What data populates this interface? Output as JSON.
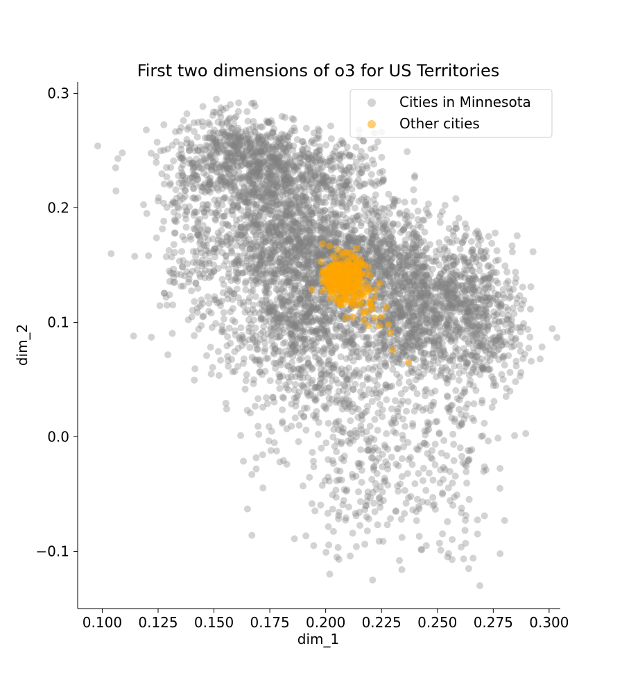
{
  "chart_data": {
    "type": "scatter",
    "title": "First two dimensions of o3 for US Territories",
    "xlabel": "dim_1",
    "ylabel": "dim_2",
    "xlim": [
      0.089,
      0.305
    ],
    "ylim": [
      -0.15,
      0.31
    ],
    "xticks": [
      0.1,
      0.125,
      0.15,
      0.175,
      0.2,
      0.225,
      0.25,
      0.275,
      0.3
    ],
    "xtick_labels": [
      "0.100",
      "0.125",
      "0.150",
      "0.175",
      "0.200",
      "0.225",
      "0.250",
      "0.275",
      "0.300"
    ],
    "yticks": [
      -0.1,
      0.0,
      0.1,
      0.2,
      0.3
    ],
    "ytick_labels": [
      "−0.1",
      "0.0",
      "0.1",
      "0.2",
      "0.3"
    ],
    "grid": false,
    "legend_position": "top-right",
    "series": [
      {
        "name": "Cities in Minnesota",
        "color": "#808080",
        "opacity": 0.35,
        "clusters": [
          {
            "cx": 0.158,
            "cy": 0.245,
            "sx": 0.011,
            "sy": 0.02,
            "n": 420
          },
          {
            "cx": 0.178,
            "cy": 0.235,
            "sx": 0.012,
            "sy": 0.018,
            "n": 380
          },
          {
            "cx": 0.205,
            "cy": 0.225,
            "sx": 0.012,
            "sy": 0.02,
            "n": 220
          },
          {
            "cx": 0.14,
            "cy": 0.21,
            "sx": 0.009,
            "sy": 0.03,
            "n": 140
          },
          {
            "cx": 0.175,
            "cy": 0.18,
            "sx": 0.013,
            "sy": 0.03,
            "n": 600
          },
          {
            "cx": 0.19,
            "cy": 0.14,
            "sx": 0.013,
            "sy": 0.035,
            "n": 600
          },
          {
            "cx": 0.21,
            "cy": 0.16,
            "sx": 0.012,
            "sy": 0.02,
            "n": 400
          },
          {
            "cx": 0.23,
            "cy": 0.145,
            "sx": 0.012,
            "sy": 0.03,
            "n": 450
          },
          {
            "cx": 0.25,
            "cy": 0.12,
            "sx": 0.012,
            "sy": 0.028,
            "n": 450
          },
          {
            "cx": 0.268,
            "cy": 0.12,
            "sx": 0.01,
            "sy": 0.03,
            "n": 300
          },
          {
            "cx": 0.185,
            "cy": 0.09,
            "sx": 0.013,
            "sy": 0.02,
            "n": 300
          },
          {
            "cx": 0.235,
            "cy": 0.09,
            "sx": 0.015,
            "sy": 0.02,
            "n": 350
          },
          {
            "cx": 0.275,
            "cy": 0.08,
            "sx": 0.008,
            "sy": 0.02,
            "n": 120
          },
          {
            "cx": 0.2,
            "cy": 0.04,
            "sx": 0.014,
            "sy": 0.022,
            "n": 160
          },
          {
            "cx": 0.225,
            "cy": 0.0,
            "sx": 0.018,
            "sy": 0.035,
            "n": 220
          },
          {
            "cx": 0.255,
            "cy": 0.01,
            "sx": 0.012,
            "sy": 0.035,
            "n": 110
          },
          {
            "cx": 0.215,
            "cy": -0.06,
            "sx": 0.016,
            "sy": 0.025,
            "n": 70
          },
          {
            "cx": 0.255,
            "cy": -0.07,
            "sx": 0.012,
            "sy": 0.025,
            "n": 40
          },
          {
            "cx": 0.155,
            "cy": 0.11,
            "sx": 0.01,
            "sy": 0.03,
            "n": 90
          },
          {
            "cx": 0.14,
            "cy": 0.155,
            "sx": 0.008,
            "sy": 0.03,
            "n": 90
          },
          {
            "cx": 0.17,
            "cy": 0.0,
            "sx": 0.01,
            "sy": 0.03,
            "n": 30
          }
        ],
        "extra_points": [
          [
            0.098,
            0.254
          ],
          [
            0.106,
            0.235
          ],
          [
            0.107,
            0.243
          ],
          [
            0.109,
            0.248
          ],
          [
            0.104,
            0.16
          ],
          [
            0.114,
            0.088
          ],
          [
            0.122,
            0.087
          ],
          [
            0.125,
            0.206
          ],
          [
            0.296,
            0.068
          ],
          [
            0.292,
            0.066
          ],
          [
            0.287,
            0.053
          ],
          [
            0.269,
            -0.13
          ],
          [
            0.264,
            -0.115
          ],
          [
            0.221,
            -0.125
          ],
          [
            0.233,
            -0.108
          ],
          [
            0.205,
            -0.105
          ],
          [
            0.186,
            -0.089
          ],
          [
            0.167,
            -0.086
          ],
          [
            0.165,
            -0.063
          ],
          [
            0.245,
            -0.095
          ],
          [
            0.255,
            -0.102
          ],
          [
            0.266,
            -0.106
          ],
          [
            0.278,
            -0.045
          ]
        ]
      },
      {
        "name": "Other cities",
        "color": "#ffa500",
        "opacity": 0.55,
        "clusters": [
          {
            "cx": 0.208,
            "cy": 0.14,
            "sx": 0.004,
            "sy": 0.009,
            "n": 260
          },
          {
            "cx": 0.212,
            "cy": 0.125,
            "sx": 0.006,
            "sy": 0.01,
            "n": 60
          }
        ],
        "extra_points": [
          [
            0.222,
            0.104
          ],
          [
            0.224,
            0.097
          ],
          [
            0.227,
            0.113
          ],
          [
            0.228,
            0.098
          ],
          [
            0.229,
            0.091
          ],
          [
            0.225,
            0.105
          ],
          [
            0.219,
            0.097
          ],
          [
            0.23,
            0.076
          ],
          [
            0.237,
            0.065
          ],
          [
            0.209,
            0.104
          ],
          [
            0.198,
            0.153
          ],
          [
            0.217,
            0.108
          ]
        ]
      }
    ]
  }
}
